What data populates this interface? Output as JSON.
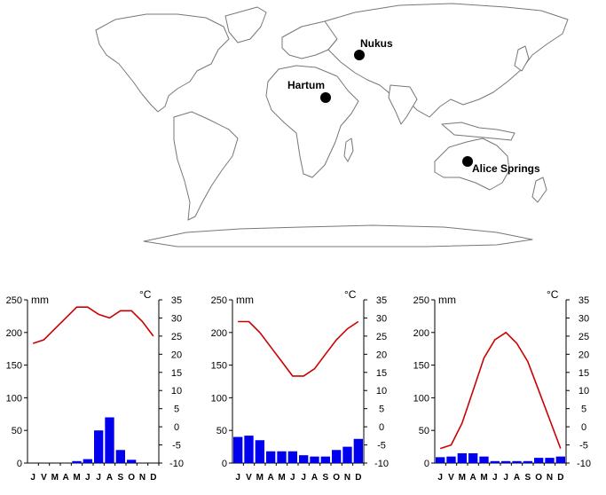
{
  "map": {
    "cities": [
      {
        "id": "nukus",
        "label": "Nukus"
      },
      {
        "id": "hartum",
        "label": "Hartum"
      },
      {
        "id": "alice",
        "label": "Alice Springs"
      }
    ]
  },
  "axis": {
    "left_unit": "mm",
    "right_unit": "°C",
    "precip_ticks": [
      "250",
      "200",
      "150",
      "100",
      "50",
      "0"
    ],
    "temp_ticks": [
      "35",
      "30",
      "25",
      "20",
      "15",
      "10",
      "5",
      "0",
      "-5",
      "-10"
    ],
    "months": [
      "J",
      "V",
      "M",
      "A",
      "M",
      "J",
      "J",
      "A",
      "S",
      "O",
      "N",
      "D"
    ]
  },
  "colors": {
    "temperature_line": "#cc0000",
    "precipitation_bar": "#0000ee",
    "map_outline": "#777777"
  },
  "chart_data": [
    {
      "type": "bar",
      "categories": [
        "J",
        "V",
        "M",
        "A",
        "M",
        "J",
        "J",
        "A",
        "S",
        "O",
        "N",
        "D"
      ],
      "series": [
        {
          "values": [
            0,
            0,
            0,
            0,
            3,
            6,
            50,
            70,
            20,
            5,
            0,
            0
          ],
          "axis": "precipitation_mm"
        },
        {
          "type": "line",
          "values": [
            23,
            24,
            27,
            30,
            33,
            33,
            31,
            30,
            32,
            32,
            29,
            25
          ],
          "axis": "temperature_c"
        }
      ],
      "ylim_precipitation": [
        0,
        250
      ],
      "ylim_temperature": [
        -10,
        35
      ]
    },
    {
      "type": "bar",
      "categories": [
        "J",
        "V",
        "M",
        "A",
        "M",
        "J",
        "J",
        "A",
        "S",
        "O",
        "N",
        "D"
      ],
      "series": [
        {
          "values": [
            40,
            42,
            35,
            18,
            18,
            18,
            12,
            10,
            10,
            20,
            25,
            37
          ],
          "axis": "precipitation_mm"
        },
        {
          "type": "line",
          "values": [
            29,
            29,
            26,
            22,
            18,
            14,
            14,
            16,
            20,
            24,
            27,
            29
          ],
          "axis": "temperature_c"
        }
      ],
      "ylim_precipitation": [
        0,
        250
      ],
      "ylim_temperature": [
        -10,
        35
      ]
    },
    {
      "type": "bar",
      "categories": [
        "J",
        "V",
        "M",
        "A",
        "M",
        "J",
        "J",
        "A",
        "S",
        "O",
        "N",
        "D"
      ],
      "series": [
        {
          "values": [
            9,
            10,
            15,
            15,
            10,
            3,
            3,
            3,
            3,
            8,
            8,
            10
          ],
          "axis": "precipitation_mm"
        },
        {
          "type": "line",
          "values": [
            -6,
            -5,
            1,
            10,
            19,
            24,
            26,
            23,
            18,
            10,
            2,
            -6
          ],
          "axis": "temperature_c"
        }
      ],
      "ylim_precipitation": [
        0,
        250
      ],
      "ylim_temperature": [
        -10,
        35
      ]
    }
  ]
}
